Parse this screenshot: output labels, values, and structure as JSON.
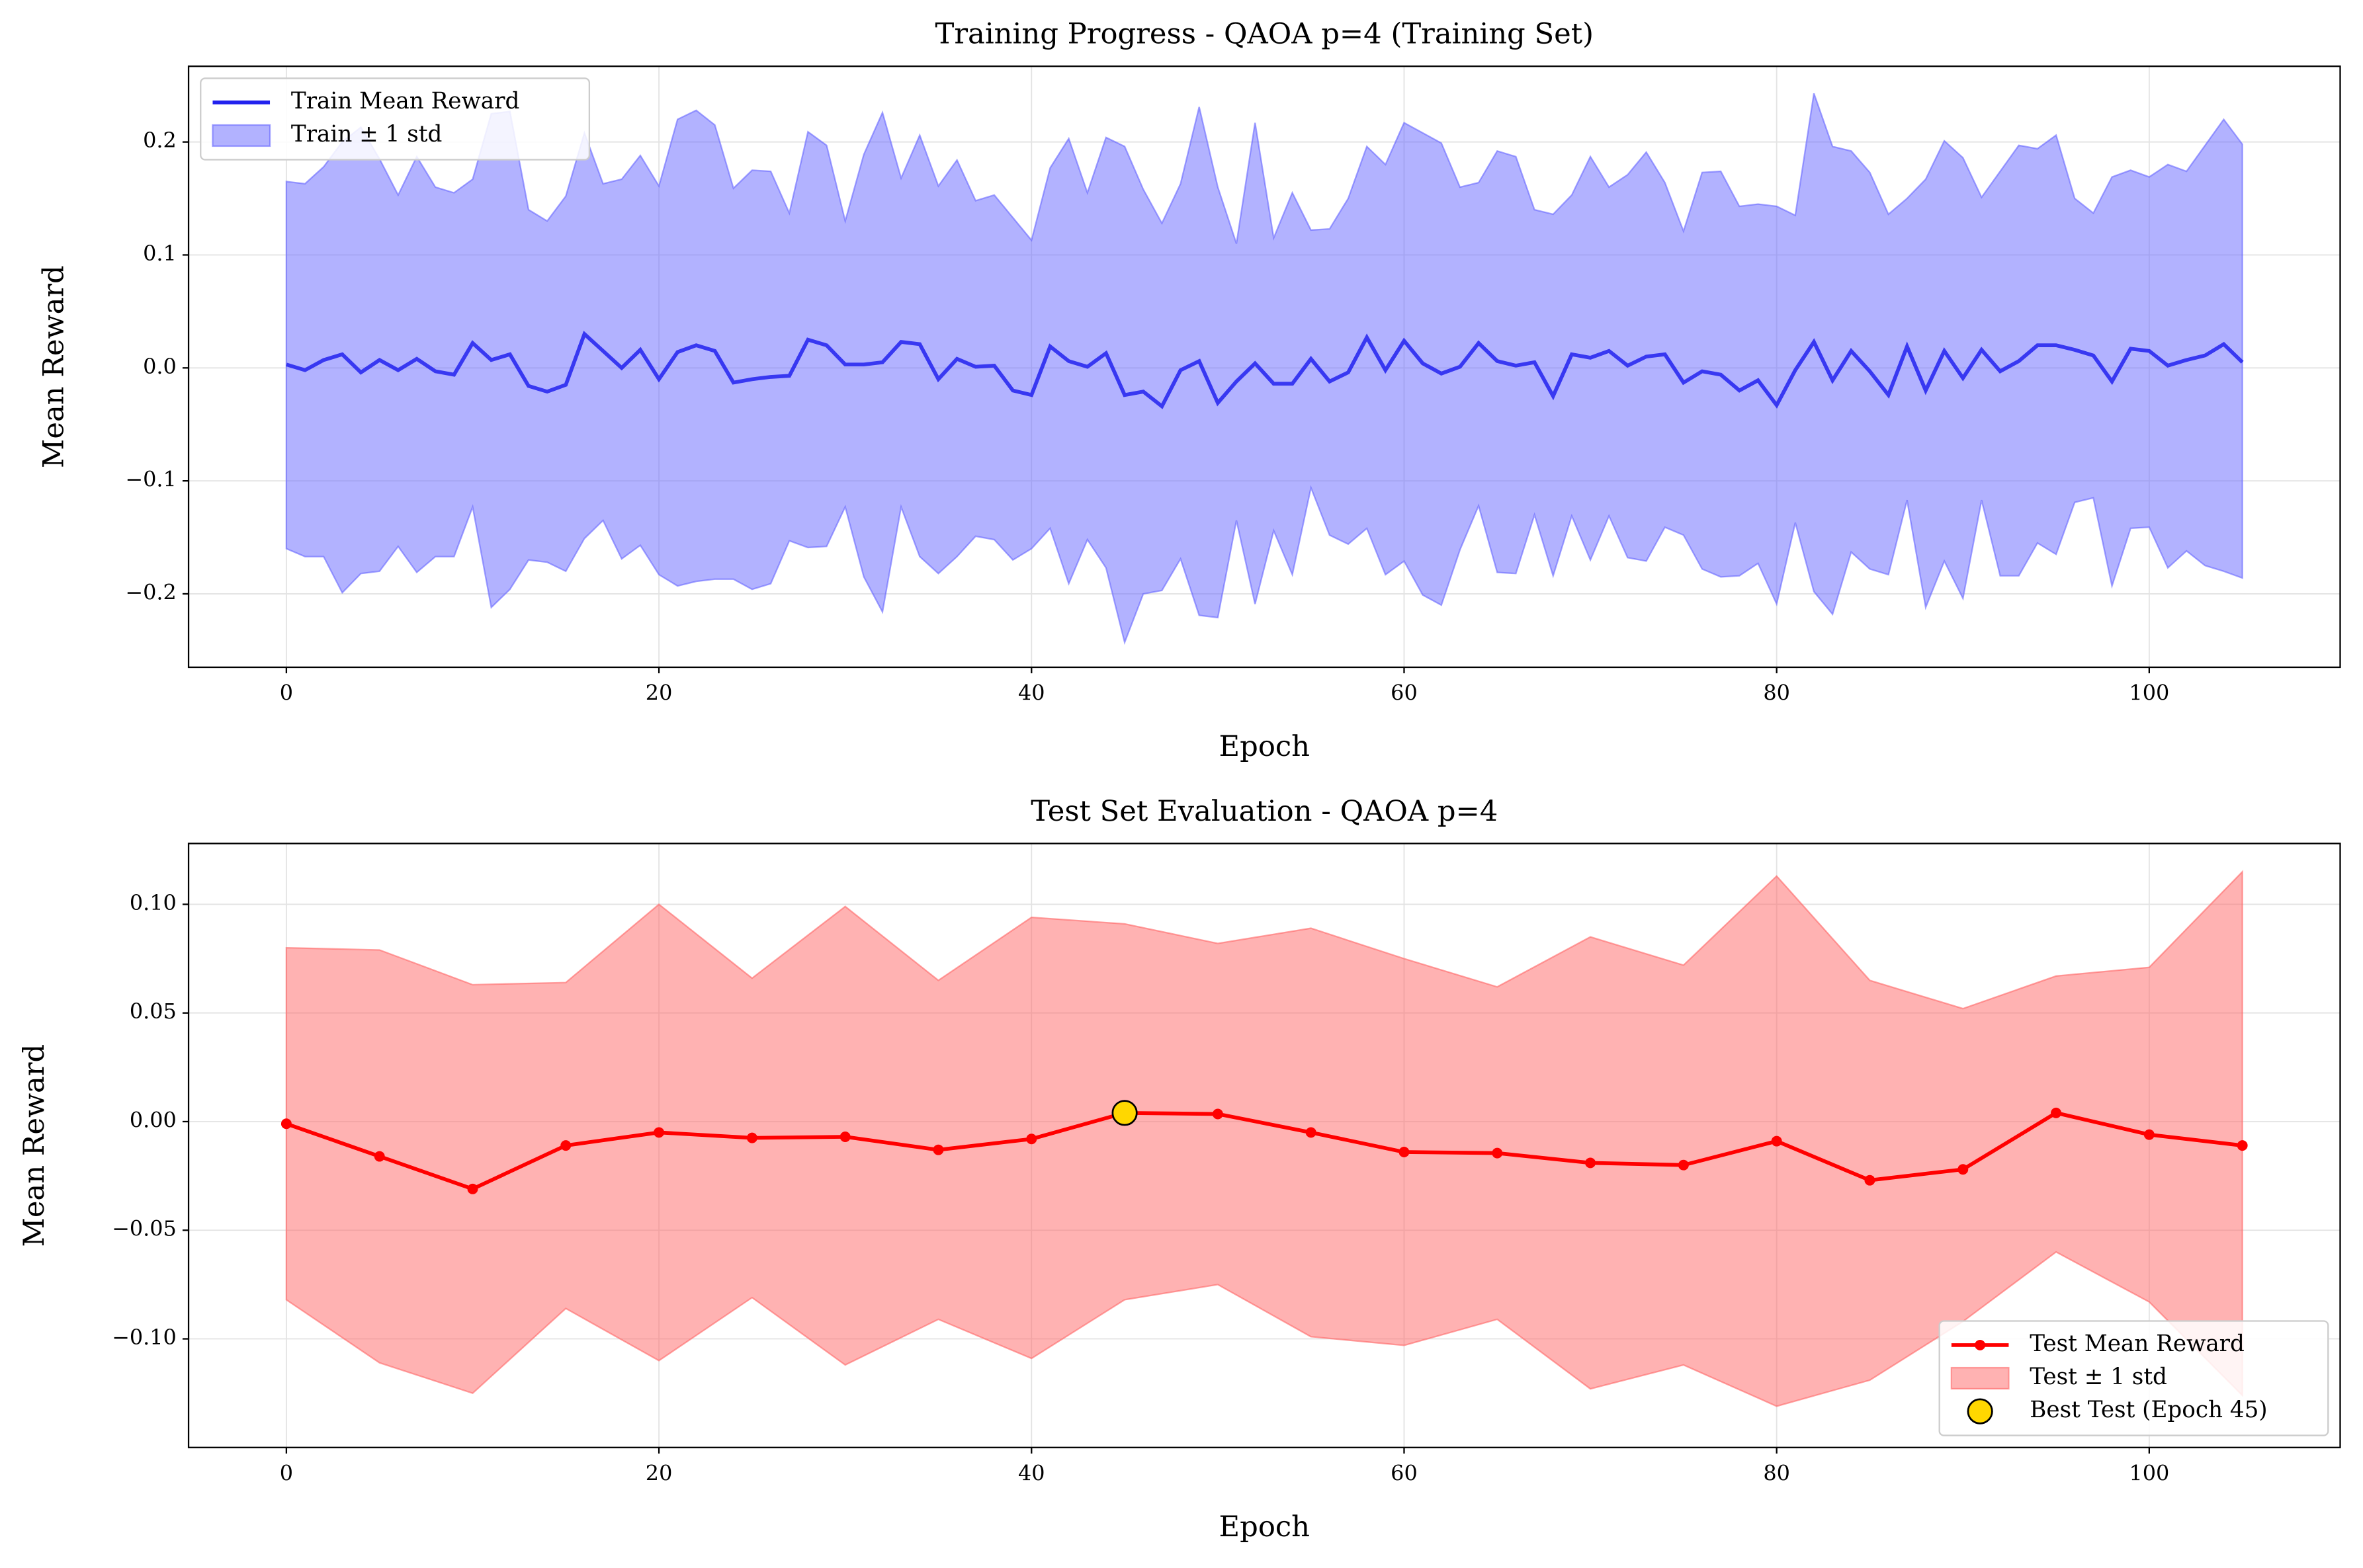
{
  "chart_data": [
    {
      "type": "line",
      "title": "Training Progress - QAOA p=4 (Training Set)",
      "x_label": "Epoch",
      "y_label": "Mean Reward",
      "xlim": [
        -5.25,
        110.25
      ],
      "ylim": [
        -0.265,
        0.267
      ],
      "xticks": [
        0,
        20,
        40,
        60,
        80,
        100
      ],
      "yticks": [
        {
          "value": -0.2,
          "label": "−0.2"
        },
        {
          "value": -0.1,
          "label": "−0.1"
        },
        {
          "value": 0,
          "label": "0.0"
        },
        0.1,
        0.2
      ],
      "grid": true,
      "legend": "upper left",
      "x": [
        0,
        1,
        2,
        3,
        4,
        5,
        6,
        7,
        8,
        9,
        10,
        11,
        12,
        13,
        14,
        15,
        16,
        17,
        18,
        19,
        20,
        21,
        22,
        23,
        24,
        25,
        26,
        27,
        28,
        29,
        30,
        31,
        32,
        33,
        34,
        35,
        36,
        37,
        38,
        39,
        40,
        41,
        42,
        43,
        44,
        45,
        46,
        47,
        48,
        49,
        50,
        51,
        52,
        53,
        54,
        55,
        56,
        57,
        58,
        59,
        60,
        61,
        62,
        63,
        64,
        65,
        66,
        67,
        68,
        69,
        70,
        71,
        72,
        73,
        74,
        75,
        76,
        77,
        78,
        79,
        80,
        81,
        82,
        83,
        84,
        85,
        86,
        87,
        88,
        89,
        90,
        91,
        92,
        93,
        94,
        95,
        96,
        97,
        98,
        99,
        100,
        101,
        102,
        103,
        104,
        105
      ],
      "series": [
        {
          "name": "Train Mean Reward",
          "type": "line",
          "color": "#2222ee",
          "values": [
            0.003,
            -0.002,
            0.007,
            0.012,
            -0.004,
            0.007,
            -0.002,
            0.008,
            -0.003,
            -0.006,
            0.022,
            0.007,
            0.012,
            -0.016,
            -0.021,
            -0.015,
            0.03,
            0.015,
            0.0,
            0.016,
            -0.01,
            0.014,
            0.02,
            0.015,
            -0.013,
            -0.01,
            -0.008,
            -0.007,
            0.025,
            0.02,
            0.003,
            0.003,
            0.005,
            0.023,
            0.021,
            -0.01,
            0.008,
            0.001,
            0.002,
            -0.02,
            -0.024,
            0.019,
            0.006,
            0.001,
            0.013,
            -0.024,
            -0.021,
            -0.034,
            -0.002,
            0.006,
            -0.031,
            -0.012,
            0.004,
            -0.014,
            -0.014,
            0.008,
            -0.012,
            -0.004,
            0.027,
            -0.002,
            0.024,
            0.004,
            -0.005,
            0.001,
            0.022,
            0.006,
            0.002,
            0.005,
            -0.025,
            0.012,
            0.009,
            0.015,
            0.002,
            0.01,
            0.012,
            -0.013,
            -0.003,
            -0.006,
            -0.02,
            -0.011,
            -0.033,
            -0.002,
            0.023,
            -0.011,
            0.015,
            -0.003,
            -0.024,
            0.019,
            -0.02,
            0.015,
            -0.009,
            0.016,
            -0.003,
            0.006,
            0.02,
            0.02,
            0.016,
            0.011,
            -0.012,
            0.017,
            0.015,
            0.002,
            0.007,
            0.011,
            0.021,
            0.005
          ]
        },
        {
          "name": "Train ± 1 std",
          "type": "band",
          "color": "#6666ff",
          "upper": [
            0.165,
            0.163,
            0.178,
            0.2,
            0.213,
            0.185,
            0.153,
            0.187,
            0.16,
            0.155,
            0.167,
            0.225,
            0.227,
            0.14,
            0.13,
            0.152,
            0.208,
            0.163,
            0.167,
            0.188,
            0.161,
            0.22,
            0.228,
            0.215,
            0.159,
            0.175,
            0.174,
            0.137,
            0.209,
            0.197,
            0.13,
            0.189,
            0.226,
            0.168,
            0.206,
            0.161,
            0.184,
            0.148,
            0.153,
            0.133,
            0.113,
            0.177,
            0.203,
            0.155,
            0.204,
            0.196,
            0.158,
            0.128,
            0.163,
            0.231,
            0.16,
            0.11,
            0.217,
            0.115,
            0.155,
            0.122,
            0.123,
            0.15,
            0.196,
            0.18,
            0.217,
            0.208,
            0.199,
            0.16,
            0.164,
            0.192,
            0.187,
            0.14,
            0.136,
            0.153,
            0.187,
            0.16,
            0.171,
            0.191,
            0.164,
            0.121,
            0.173,
            0.174,
            0.143,
            0.145,
            0.143,
            0.135,
            0.243,
            0.196,
            0.192,
            0.173,
            0.136,
            0.15,
            0.167,
            0.201,
            0.186,
            0.151,
            0.174,
            0.197,
            0.194,
            0.206,
            0.15,
            0.137,
            0.169,
            0.175,
            0.169,
            0.18,
            0.174,
            0.197,
            0.22,
            0.198
          ],
          "lower": [
            -0.16,
            -0.167,
            -0.167,
            -0.199,
            -0.182,
            -0.18,
            -0.158,
            -0.181,
            -0.167,
            -0.167,
            -0.123,
            -0.212,
            -0.196,
            -0.17,
            -0.172,
            -0.18,
            -0.151,
            -0.135,
            -0.169,
            -0.157,
            -0.183,
            -0.193,
            -0.189,
            -0.187,
            -0.187,
            -0.196,
            -0.191,
            -0.153,
            -0.159,
            -0.158,
            -0.123,
            -0.185,
            -0.216,
            -0.123,
            -0.167,
            -0.182,
            -0.167,
            -0.149,
            -0.152,
            -0.17,
            -0.16,
            -0.142,
            -0.191,
            -0.152,
            -0.177,
            -0.243,
            -0.2,
            -0.197,
            -0.169,
            -0.219,
            -0.221,
            -0.135,
            -0.209,
            -0.144,
            -0.183,
            -0.106,
            -0.148,
            -0.156,
            -0.142,
            -0.183,
            -0.171,
            -0.201,
            -0.21,
            -0.161,
            -0.122,
            -0.181,
            -0.182,
            -0.13,
            -0.184,
            -0.131,
            -0.17,
            -0.131,
            -0.168,
            -0.171,
            -0.141,
            -0.148,
            -0.178,
            -0.185,
            -0.184,
            -0.173,
            -0.209,
            -0.137,
            -0.198,
            -0.218,
            -0.163,
            -0.178,
            -0.183,
            -0.117,
            -0.212,
            -0.171,
            -0.204,
            -0.117,
            -0.184,
            -0.184,
            -0.155,
            -0.165,
            -0.119,
            -0.115,
            -0.193,
            -0.142,
            -0.141,
            -0.177,
            -0.162,
            -0.175,
            -0.18,
            -0.186
          ]
        }
      ]
    },
    {
      "type": "line",
      "title": "Test Set Evaluation - QAOA p=4",
      "x_label": "Epoch",
      "y_label": "Mean Reward",
      "xlim": [
        -5.25,
        110.25
      ],
      "ylim": [
        -0.15,
        0.128
      ],
      "xticks": [
        0,
        20,
        40,
        60,
        80,
        100
      ],
      "yticks": [
        {
          "value": -0.1,
          "label": "−0.10"
        },
        {
          "value": -0.05,
          "label": "−0.05"
        },
        {
          "value": 0,
          "label": "0.00"
        },
        {
          "value": 0.05,
          "label": "0.05"
        },
        {
          "value": 0.1,
          "label": "0.10"
        }
      ],
      "grid": true,
      "legend": "lower right",
      "x": [
        0,
        5,
        10,
        15,
        20,
        25,
        30,
        35,
        40,
        45,
        50,
        55,
        60,
        65,
        70,
        75,
        80,
        85,
        90,
        95,
        100,
        105
      ],
      "series": [
        {
          "name": "Test Mean Reward",
          "type": "line",
          "markers": true,
          "color": "#ff0000",
          "values": [
            -0.001,
            -0.016,
            -0.031,
            -0.011,
            -0.005,
            -0.0075,
            -0.007,
            -0.013,
            -0.008,
            0.004,
            0.0035,
            -0.005,
            -0.014,
            -0.0145,
            -0.019,
            -0.02,
            -0.009,
            -0.027,
            -0.022,
            0.004,
            -0.006,
            -0.011
          ]
        },
        {
          "name": "Test ± 1 std",
          "type": "band",
          "color": "#ff6666",
          "upper": [
            0.08,
            0.079,
            0.063,
            0.064,
            0.1,
            0.066,
            0.099,
            0.065,
            0.094,
            0.091,
            0.082,
            0.089,
            0.075,
            0.062,
            0.085,
            0.072,
            0.113,
            0.065,
            0.052,
            0.067,
            0.071,
            0.115
          ],
          "lower": [
            -0.082,
            -0.111,
            -0.125,
            -0.086,
            -0.11,
            -0.081,
            -0.112,
            -0.091,
            -0.109,
            -0.082,
            -0.075,
            -0.099,
            -0.103,
            -0.091,
            -0.123,
            -0.112,
            -0.131,
            -0.119,
            -0.092,
            -0.06,
            -0.083,
            -0.126
          ]
        },
        {
          "name": "Best Test (Epoch 45)",
          "type": "scatter",
          "color": "#ffd700",
          "x": [
            45
          ],
          "values": [
            0.004
          ]
        }
      ]
    }
  ]
}
